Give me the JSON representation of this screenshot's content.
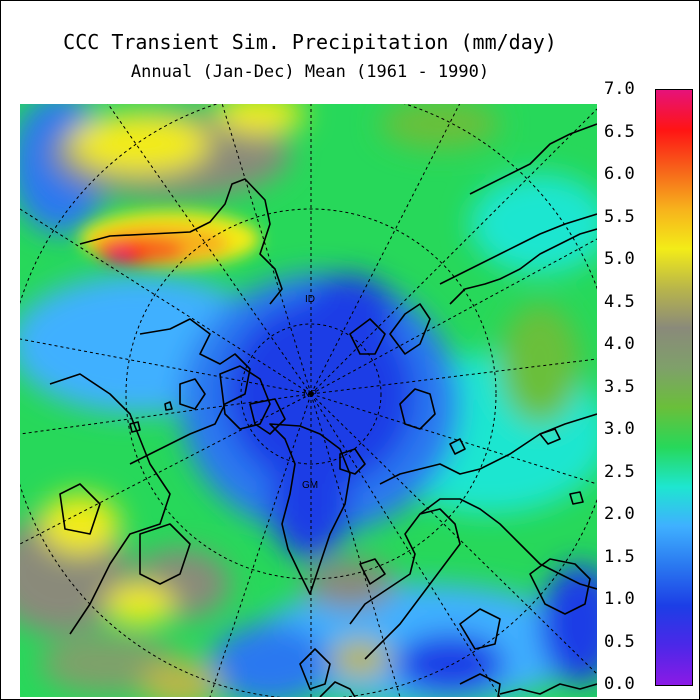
{
  "title": "CCC Transient Sim. Precipitation (mm/day)",
  "subtitle": "Annual (Jan-Dec) Mean (1961 - 1990)",
  "colorbar": {
    "ticks": [
      "7.0",
      "6.5",
      "6.0",
      "5.5",
      "5.0",
      "4.5",
      "4.0",
      "3.5",
      "3.0",
      "2.5",
      "2.0",
      "1.5",
      "1.0",
      "0.5",
      "0.0"
    ],
    "min": 0.0,
    "max": 7.0,
    "colors": [
      "#8b1ae6",
      "#4b28e8",
      "#1c3ee6",
      "#2a78f0",
      "#3fb0ff",
      "#1ee6d0",
      "#27d85a",
      "#6abf3a",
      "#7fa06a",
      "#8a8a7a",
      "#b9b64a",
      "#f3ec18",
      "#f7b21c",
      "#f7621a",
      "#ff1414",
      "#e6127a"
    ]
  },
  "map": {
    "pole_labels": [
      "ID",
      "NP",
      "GM"
    ]
  }
}
